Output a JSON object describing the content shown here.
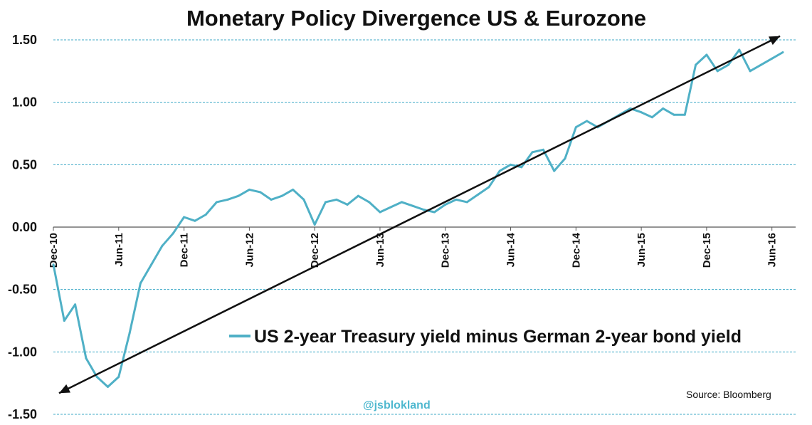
{
  "chart_data": {
    "type": "line",
    "title": "Monetary Policy Divergence US & Eurozone",
    "xlabel": "",
    "ylabel": "",
    "ylim": [
      -1.5,
      1.5
    ],
    "y_ticks": [
      "1.50",
      "1.00",
      "0.50",
      "0.00",
      "-0.50",
      "-1.00",
      "-1.50"
    ],
    "y_tick_values": [
      1.5,
      1.0,
      0.5,
      0.0,
      -0.5,
      -1.0,
      -1.5
    ],
    "x_ticks": [
      "Dec-10",
      "Jun-11",
      "Dec-11",
      "Jun-12",
      "Dec-12",
      "Jun-13",
      "Dec-13",
      "Jun-14",
      "Dec-14",
      "Jun-15",
      "Dec-15",
      "Jun-16"
    ],
    "grid": true,
    "legend_position": "center-right",
    "series": [
      {
        "name": "US 2-year Treasury yield minus German 2-year bond yield",
        "color": "#4fb0c6",
        "x": [
          "2010-12",
          "2011-01",
          "2011-02",
          "2011-03",
          "2011-04",
          "2011-05",
          "2011-06",
          "2011-07",
          "2011-08",
          "2011-09",
          "2011-10",
          "2011-11",
          "2011-12",
          "2012-01",
          "2012-02",
          "2012-03",
          "2012-04",
          "2012-05",
          "2012-06",
          "2012-07",
          "2012-08",
          "2012-09",
          "2012-10",
          "2012-11",
          "2012-12",
          "2013-01",
          "2013-02",
          "2013-03",
          "2013-04",
          "2013-05",
          "2013-06",
          "2013-07",
          "2013-08",
          "2013-09",
          "2013-10",
          "2013-11",
          "2013-12",
          "2014-01",
          "2014-02",
          "2014-03",
          "2014-04",
          "2014-05",
          "2014-06",
          "2014-07",
          "2014-08",
          "2014-09",
          "2014-10",
          "2014-11",
          "2014-12",
          "2015-01",
          "2015-02",
          "2015-03",
          "2015-04",
          "2015-05",
          "2015-06",
          "2015-07",
          "2015-08",
          "2015-09",
          "2015-10",
          "2015-11",
          "2015-12",
          "2016-01",
          "2016-02",
          "2016-03",
          "2016-04",
          "2016-05",
          "2016-06",
          "2016-07"
        ],
        "values": [
          -0.3,
          -0.75,
          -0.62,
          -1.05,
          -1.2,
          -1.28,
          -1.2,
          -0.85,
          -0.45,
          -0.3,
          -0.15,
          -0.05,
          0.08,
          0.05,
          0.1,
          0.2,
          0.22,
          0.25,
          0.3,
          0.28,
          0.22,
          0.25,
          0.3,
          0.22,
          0.02,
          0.2,
          0.22,
          0.18,
          0.25,
          0.2,
          0.12,
          0.16,
          0.2,
          0.17,
          0.14,
          0.12,
          0.18,
          0.22,
          0.2,
          0.26,
          0.32,
          0.45,
          0.5,
          0.48,
          0.6,
          0.62,
          0.45,
          0.55,
          0.8,
          0.85,
          0.8,
          0.85,
          0.9,
          0.95,
          0.92,
          0.88,
          0.95,
          0.9,
          0.9,
          1.3,
          1.38,
          1.25,
          1.3,
          1.42,
          1.25,
          1.3,
          1.35,
          1.4
        ]
      }
    ],
    "trend_arrow": {
      "from": {
        "x": "2010-12",
        "y": -1.33
      },
      "to": {
        "x": "2016-07",
        "y": 1.53
      }
    },
    "annotations": [
      "Source: Bloomberg",
      "@jsblokland"
    ]
  }
}
